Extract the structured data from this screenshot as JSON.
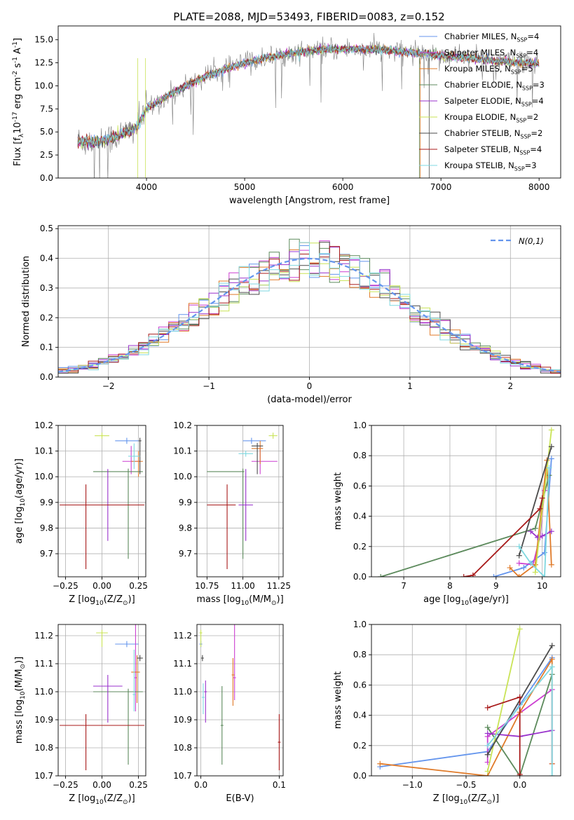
{
  "figure": {
    "title": "PLATE=2088, MJD=53493, FIBERID=0083, z=0.152"
  },
  "models": [
    {
      "label": "Chabrier MILES, N$_{SSP}$=4",
      "color": "#6495ed",
      "lw": 1.0
    },
    {
      "label": "Salpeter MILES, N$_{SSP}$=4",
      "color": "#cc3fd1",
      "lw": 1.0
    },
    {
      "label": "Kroupa MILES, N$_{SSP}$=5",
      "color": "#e07b2a",
      "lw": 1.0
    },
    {
      "label": "Chabrier ELODIE, N$_{SSP}$=3",
      "color": "#5c8a5c",
      "lw": 1.0
    },
    {
      "label": "Salpeter ELODIE, N$_{SSP}$=4",
      "color": "#9932cc",
      "lw": 1.0
    },
    {
      "label": "Kroupa ELODIE, N$_{SSP}$=2",
      "color": "#c9e356",
      "lw": 1.0
    },
    {
      "label": "Chabrier STELIB, N$_{SSP}$=2",
      "color": "#4a4a4a",
      "lw": 1.0
    },
    {
      "label": "Salpeter STELIB, N$_{SSP}$=4",
      "color": "#a81a1a",
      "lw": 1.0
    },
    {
      "label": "Kroupa STELIB, N$_{SSP}$=3",
      "color": "#7fd8e0",
      "lw": 1.0
    }
  ],
  "colors": {
    "data_spectrum": "#808080",
    "gaussian": "#6495ed",
    "grid": "#b0b0b0"
  },
  "chart_data": [
    {
      "id": "spectrum",
      "type": "line",
      "xlabel": "wavelength [Angstrom, rest frame]",
      "ylabel": "Flux [f$_\\lambda$10$^{-17}$ erg cm$^{-2}$ s$^{-1}$ A$^{-1}$]",
      "xlim": [
        3100,
        8220
      ],
      "ylim": [
        0,
        16.5
      ],
      "xticks": [
        4000,
        5000,
        6000,
        7000,
        8000
      ],
      "yticks": [
        0.0,
        2.5,
        5.0,
        7.5,
        10.0,
        12.5,
        15.0
      ],
      "grid": false,
      "legend_position": "top-right",
      "continuum": {
        "x": [
          3300,
          3500,
          3700,
          3900,
          4000,
          4200,
          4400,
          4600,
          4800,
          5000,
          5200,
          5400,
          5600,
          5800,
          6000,
          6200,
          6400,
          6600,
          6800,
          7000,
          7200,
          7400,
          7600,
          7800,
          8000
        ],
        "y": [
          4.0,
          3.9,
          4.5,
          5.5,
          7.5,
          8.8,
          10.0,
          11.0,
          11.8,
          12.5,
          13.0,
          13.4,
          13.7,
          13.9,
          14.0,
          14.0,
          13.9,
          13.7,
          13.5,
          13.3,
          13.1,
          12.9,
          12.7,
          12.5,
          12.4
        ]
      }
    },
    {
      "id": "residuals",
      "type": "step",
      "xlabel": "(data-model)/error",
      "ylabel": "Normed distribution",
      "xlim": [
        -2.5,
        2.5
      ],
      "ylim": [
        0,
        0.51
      ],
      "xticks": [
        -2,
        -1,
        0,
        1,
        2
      ],
      "yticks": [
        0.0,
        0.1,
        0.2,
        0.3,
        0.4,
        0.5
      ],
      "grid": true,
      "legend": {
        "label": "$\\mathcal{N}(0,1)$",
        "position": "top-right"
      },
      "bin_width": 0.1
    },
    {
      "id": "age_vs_Z",
      "type": "errorbar",
      "xlabel": "Z [log$_{10}$(Z/Z$_\\odot$)]",
      "ylabel": "age  [log$_{10}$(age/yr)]",
      "xlim": [
        -0.3,
        0.3
      ],
      "ylim": [
        9.61,
        10.2
      ],
      "xticks": [
        -0.25,
        0.0,
        0.25
      ],
      "yticks": [
        9.7,
        9.8,
        9.9,
        10.0,
        10.1,
        10.2
      ],
      "grid": true,
      "points": [
        {
          "model": 0,
          "x": 0.17,
          "y": 10.14,
          "xerr": [
            0.08,
            0.08
          ],
          "yerr": [
            0.0,
            0.0
          ]
        },
        {
          "model": 1,
          "x": 0.2,
          "y": 10.06,
          "xerr": [
            0.06,
            0.06
          ],
          "yerr": [
            0.05,
            0.06
          ]
        },
        {
          "model": 2,
          "x": 0.25,
          "y": 10.06,
          "xerr": [
            0.05,
            0.03
          ],
          "yerr": [
            0.06,
            0.04
          ]
        },
        {
          "model": 3,
          "x": 0.18,
          "y": 10.02,
          "xerr": [
            0.24,
            0.1
          ],
          "yerr": [
            0.34,
            0.0
          ]
        },
        {
          "model": 4,
          "x": 0.04,
          "y": 9.89,
          "xerr": [
            0.1,
            0.1
          ],
          "yerr": [
            0.14,
            0.14
          ]
        },
        {
          "model": 5,
          "x": 0.0,
          "y": 10.16,
          "xerr": [
            0.05,
            0.05
          ],
          "yerr": [
            0.0,
            0.0
          ]
        },
        {
          "model": 6,
          "x": 0.26,
          "y": 10.14,
          "xerr": [
            0.01,
            0.01
          ],
          "yerr": [
            0.13,
            0.0
          ]
        },
        {
          "model": 7,
          "x": -0.11,
          "y": 9.89,
          "xerr": [
            0.18,
            0.4
          ],
          "yerr": [
            0.25,
            0.08
          ]
        },
        {
          "model": 8,
          "x": 0.22,
          "y": 10.08,
          "xerr": [
            0.04,
            0.04
          ],
          "yerr": [
            0.05,
            0.05
          ]
        }
      ]
    },
    {
      "id": "age_vs_mass",
      "type": "errorbar",
      "xlabel": "mass [log$_{10}$(M/M$_\\odot$)]",
      "ylabel": "",
      "xlim": [
        10.68,
        11.28
      ],
      "ylim": [
        9.61,
        10.2
      ],
      "xticks": [
        10.75,
        11.0,
        11.25
      ],
      "yticks": [
        9.7,
        9.8,
        9.9,
        10.0,
        10.1,
        10.2
      ],
      "grid": true,
      "points": [
        {
          "model": 0,
          "x": 11.06,
          "y": 10.14,
          "xerr": [
            0.06,
            0.1
          ],
          "yerr": [
            0.0,
            0.0
          ]
        },
        {
          "model": 1,
          "x": 11.12,
          "y": 10.06,
          "xerr": [
            0.06,
            0.12
          ],
          "yerr": [
            0.05,
            0.06
          ]
        },
        {
          "model": 2,
          "x": 11.12,
          "y": 10.11,
          "xerr": [
            0.06,
            0.02
          ],
          "yerr": [
            0.06,
            0.03
          ]
        },
        {
          "model": 3,
          "x": 11.0,
          "y": 10.02,
          "xerr": [
            0.25,
            0.0
          ],
          "yerr": [
            0.34,
            0.0
          ]
        },
        {
          "model": 4,
          "x": 11.02,
          "y": 9.89,
          "xerr": [
            0.05,
            0.05
          ],
          "yerr": [
            0.14,
            0.14
          ]
        },
        {
          "model": 5,
          "x": 11.21,
          "y": 10.16,
          "xerr": [
            0.03,
            0.03
          ],
          "yerr": [
            0.0,
            0.0
          ]
        },
        {
          "model": 6,
          "x": 11.1,
          "y": 10.12,
          "xerr": [
            0.04,
            0.04
          ],
          "yerr": [
            0.11,
            0.0
          ]
        },
        {
          "model": 7,
          "x": 10.89,
          "y": 9.89,
          "xerr": [
            0.14,
            0.06
          ],
          "yerr": [
            0.25,
            0.08
          ]
        },
        {
          "model": 8,
          "x": 11.02,
          "y": 10.09,
          "xerr": [
            0.05,
            0.05
          ],
          "yerr": [
            0.0,
            0.0
          ]
        }
      ]
    },
    {
      "id": "weight_vs_age",
      "type": "line",
      "xlabel": "age  [log$_{10}$(age/yr)]",
      "ylabel": "mass weight",
      "xlim": [
        6.3,
        10.4
      ],
      "ylim": [
        0,
        1.0
      ],
      "xticks": [
        7,
        8,
        9,
        10
      ],
      "yticks": [
        0.0,
        0.2,
        0.4,
        0.6,
        0.8,
        1.0
      ],
      "grid": true,
      "series": [
        {
          "model": 0,
          "x": [
            8.95,
            9.6,
            10.05,
            10.2
          ],
          "y": [
            0.0,
            0.06,
            0.16,
            0.78
          ]
        },
        {
          "model": 1,
          "x": [
            9.5,
            9.8,
            9.95,
            10.05
          ],
          "y": [
            0.09,
            0.08,
            0.26,
            0.57
          ]
        },
        {
          "model": 2,
          "x": [
            9.3,
            9.5,
            9.85,
            10.1,
            10.2
          ],
          "y": [
            0.06,
            0.0,
            0.08,
            0.77,
            0.08
          ]
        },
        {
          "model": 3,
          "x": [
            6.5,
            9.85,
            10.15
          ],
          "y": [
            0.0,
            0.32,
            0.67
          ]
        },
        {
          "model": 4,
          "x": [
            9.75,
            9.9,
            10.0,
            10.2
          ],
          "y": [
            0.3,
            0.26,
            0.27,
            0.3
          ]
        },
        {
          "model": 5,
          "x": [
            9.85,
            10.2
          ],
          "y": [
            0.03,
            0.97
          ]
        },
        {
          "model": 6,
          "x": [
            9.5,
            10.2
          ],
          "y": [
            0.14,
            0.86
          ]
        },
        {
          "model": 7,
          "x": [
            8.3,
            8.5,
            9.95,
            10.0
          ],
          "y": [
            0.0,
            0.01,
            0.45,
            0.52
          ]
        },
        {
          "model": 8,
          "x": [
            9.5,
            9.75,
            10.05,
            10.15
          ],
          "y": [
            0.2,
            0.09,
            0.0,
            0.72
          ]
        }
      ]
    },
    {
      "id": "mass_vs_Z",
      "type": "errorbar",
      "xlabel": "Z [log$_{10}$(Z/Z$_\\odot$)]",
      "ylabel": "mass [log$_{10}$(M/M$_\\odot$)]",
      "xlim": [
        -0.3,
        0.3
      ],
      "ylim": [
        10.7,
        11.24
      ],
      "xticks": [
        -0.25,
        0.0,
        0.25
      ],
      "yticks": [
        10.7,
        10.8,
        10.9,
        11.0,
        11.1,
        11.2
      ],
      "grid": true,
      "points": [
        {
          "model": 0,
          "x": 0.17,
          "y": 11.17,
          "xerr": [
            0.08,
            0.08
          ],
          "yerr": [
            0.0,
            0.0
          ]
        },
        {
          "model": 1,
          "x": 0.23,
          "y": 11.05,
          "xerr": [
            0.0,
            0.0
          ],
          "yerr": [
            0.12,
            0.19
          ]
        },
        {
          "model": 2,
          "x": 0.24,
          "y": 11.07,
          "xerr": [
            0.04,
            0.02
          ],
          "yerr": [
            0.11,
            0.06
          ]
        },
        {
          "model": 3,
          "x": 0.18,
          "y": 11.0,
          "xerr": [
            0.24,
            0.1
          ],
          "yerr": [
            0.26,
            0.0
          ]
        },
        {
          "model": 4,
          "x": 0.04,
          "y": 11.02,
          "xerr": [
            0.1,
            0.1
          ],
          "yerr": [
            0.13,
            0.04
          ]
        },
        {
          "model": 5,
          "x": 0.0,
          "y": 11.21,
          "xerr": [
            0.04,
            0.04
          ],
          "yerr": [
            0.05,
            0.0
          ]
        },
        {
          "model": 6,
          "x": 0.26,
          "y": 11.12,
          "xerr": [
            0.02,
            0.02
          ],
          "yerr": [
            0.0,
            0.0
          ]
        },
        {
          "model": 7,
          "x": -0.11,
          "y": 10.88,
          "xerr": [
            0.18,
            0.4
          ],
          "yerr": [
            0.16,
            0.04
          ]
        },
        {
          "model": 8,
          "x": 0.22,
          "y": 10.99,
          "xerr": [
            0.0,
            0.0
          ],
          "yerr": [
            0.06,
            0.16
          ]
        }
      ]
    },
    {
      "id": "mass_vs_ebv",
      "type": "errorbar",
      "xlabel": "E(B-V)",
      "ylabel": "",
      "xlim": [
        -0.005,
        0.105
      ],
      "ylim": [
        10.7,
        11.24
      ],
      "xticks": [
        0.0,
        0.1
      ],
      "yticks": [
        10.7,
        10.8,
        10.9,
        11.0,
        11.1,
        11.2
      ],
      "grid": true,
      "points": [
        {
          "model": 0,
          "x": 0.0,
          "y": 11.17,
          "xerr": [
            0.0,
            0.0
          ],
          "yerr": [
            0.0,
            0.0
          ]
        },
        {
          "model": 1,
          "x": 0.043,
          "y": 11.05,
          "xerr": [
            0.0,
            0.0
          ],
          "yerr": [
            0.08,
            0.19
          ]
        },
        {
          "model": 2,
          "x": 0.041,
          "y": 11.06,
          "xerr": [
            0.0,
            0.0
          ],
          "yerr": [
            0.11,
            0.06
          ]
        },
        {
          "model": 3,
          "x": 0.027,
          "y": 10.88,
          "xerr": [
            0.0,
            0.0
          ],
          "yerr": [
            0.14,
            0.14
          ]
        },
        {
          "model": 4,
          "x": 0.006,
          "y": 11.0,
          "xerr": [
            0.0,
            0.0
          ],
          "yerr": [
            0.11,
            0.04
          ]
        },
        {
          "model": 5,
          "x": 0.0,
          "y": 11.21,
          "xerr": [
            0.0,
            0.0
          ],
          "yerr": [
            0.05,
            0.0
          ]
        },
        {
          "model": 6,
          "x": 0.002,
          "y": 11.12,
          "xerr": [
            0.0,
            0.0
          ],
          "yerr": [
            0.0,
            0.0
          ]
        },
        {
          "model": 7,
          "x": 0.1,
          "y": 10.82,
          "xerr": [
            0.0,
            0.0
          ],
          "yerr": [
            0.1,
            0.1
          ]
        },
        {
          "model": 8,
          "x": 0.003,
          "y": 10.98,
          "xerr": [
            0.0,
            0.0
          ],
          "yerr": [
            0.06,
            0.05
          ]
        }
      ]
    },
    {
      "id": "weight_vs_Z",
      "type": "line",
      "xlabel": "Z [log$_{10}$(Z/Z$_\\odot$)]",
      "ylabel": "mass weight",
      "xlim": [
        -1.38,
        0.38
      ],
      "ylim": [
        0,
        1.0
      ],
      "xticks": [
        -1.0,
        -0.5,
        0.0
      ],
      "yticks": [
        0.0,
        0.2,
        0.4,
        0.6,
        0.8,
        1.0
      ],
      "grid": true,
      "series": [
        {
          "model": 0,
          "x": [
            -1.3,
            -0.3,
            0.0,
            0.3
          ],
          "y": [
            0.06,
            0.16,
            0.47,
            0.78
          ]
        },
        {
          "model": 1,
          "x": [
            -0.3,
            -0.3,
            0.3,
            0.3
          ],
          "y": [
            0.09,
            0.26,
            0.57,
            0.08
          ]
        },
        {
          "model": 2,
          "x": [
            -1.3,
            -0.3,
            0.0,
            0.3,
            0.3
          ],
          "y": [
            0.08,
            0.0,
            0.42,
            0.77,
            0.08
          ]
        },
        {
          "model": 3,
          "x": [
            -0.3,
            0.0,
            0.3
          ],
          "y": [
            0.32,
            0.0,
            0.67
          ]
        },
        {
          "model": 4,
          "x": [
            -0.3,
            0.0,
            0.3
          ],
          "y": [
            0.28,
            0.26,
            0.3
          ]
        },
        {
          "model": 5,
          "x": [
            -0.3,
            0.0
          ],
          "y": [
            0.03,
            0.97
          ]
        },
        {
          "model": 6,
          "x": [
            -0.3,
            0.3
          ],
          "y": [
            0.14,
            0.86
          ]
        },
        {
          "model": 7,
          "x": [
            -0.3,
            0.0,
            0.0,
            0.0
          ],
          "y": [
            0.45,
            0.52,
            0.0,
            0.01
          ]
        },
        {
          "model": 8,
          "x": [
            -0.3,
            0.3,
            0.3
          ],
          "y": [
            0.2,
            0.72,
            0.0
          ]
        }
      ]
    }
  ]
}
